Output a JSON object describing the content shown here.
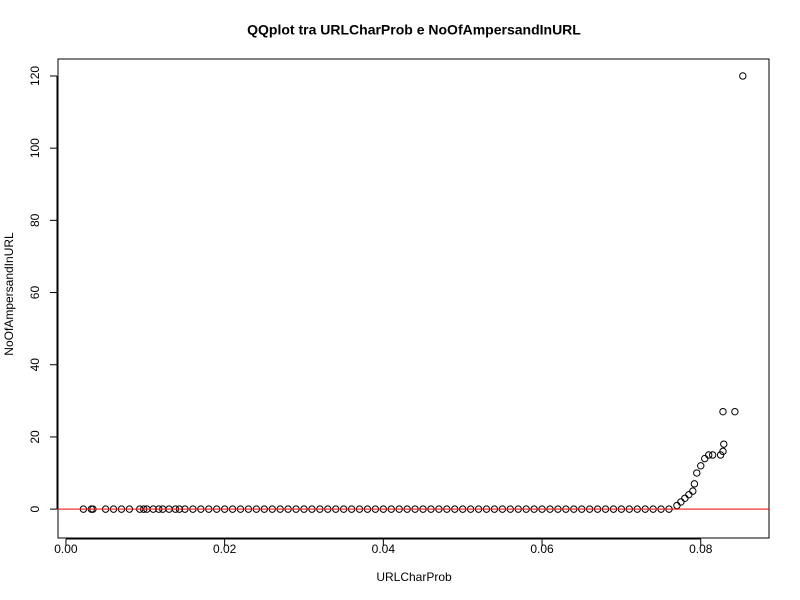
{
  "chart_data": {
    "type": "scatter",
    "title": "QQplot tra URLCharProb e NoOfAmpersandInURL",
    "x_label": "URLCharProb",
    "y_label": "NoOfAmpersandInURL",
    "xlim": [
      -0.001,
      0.0886
    ],
    "ylim": [
      -8,
      124.7
    ],
    "xticks": [
      {
        "value": 0,
        "label": "0.00"
      },
      0.02,
      0.04,
      0.06,
      0.08
    ],
    "yticks": [
      0,
      20,
      40,
      60,
      80,
      100,
      120
    ],
    "color": "#000000",
    "reference_line": {
      "y": 0,
      "color": "#ff0000"
    },
    "x": [
      0.0022,
      0.0032,
      0.0034,
      0.005,
      0.006,
      0.007,
      0.008,
      0.0093,
      0.0098,
      0.0102,
      0.011,
      0.0117,
      0.0122,
      0.013,
      0.0138,
      0.0143,
      0.015,
      0.016,
      0.017,
      0.018,
      0.019,
      0.02,
      0.021,
      0.022,
      0.023,
      0.024,
      0.025,
      0.026,
      0.027,
      0.028,
      0.029,
      0.03,
      0.031,
      0.032,
      0.033,
      0.034,
      0.035,
      0.036,
      0.037,
      0.038,
      0.039,
      0.04,
      0.041,
      0.042,
      0.043,
      0.044,
      0.045,
      0.046,
      0.047,
      0.048,
      0.049,
      0.05,
      0.051,
      0.052,
      0.053,
      0.054,
      0.055,
      0.056,
      0.057,
      0.058,
      0.059,
      0.06,
      0.061,
      0.062,
      0.063,
      0.064,
      0.065,
      0.066,
      0.067,
      0.068,
      0.069,
      0.07,
      0.071,
      0.072,
      0.073,
      0.074,
      0.075,
      0.076,
      0.077,
      0.0775,
      0.078,
      0.0785,
      0.079,
      0.0792,
      0.0795,
      0.08,
      0.0805,
      0.081,
      0.0815,
      0.0825,
      0.0828,
      0.0829,
      0.0828,
      0.0843,
      0.0853
    ],
    "values": [
      0,
      0,
      0,
      0,
      0,
      0,
      0,
      0,
      0,
      0,
      0,
      0,
      0,
      0,
      0,
      0,
      0,
      0,
      0,
      0,
      0,
      0,
      0,
      0,
      0,
      0,
      0,
      0,
      0,
      0,
      0,
      0,
      0,
      0,
      0,
      0,
      0,
      0,
      0,
      0,
      0,
      0,
      0,
      0,
      0,
      0,
      0,
      0,
      0,
      0,
      0,
      0,
      0,
      0,
      0,
      0,
      0,
      0,
      0,
      0,
      0,
      0,
      0,
      0,
      0,
      0,
      0,
      0,
      0,
      0,
      0,
      0,
      0,
      0,
      0,
      0,
      0,
      0,
      1,
      2,
      3,
      4,
      5,
      7,
      10,
      12,
      14,
      15,
      15,
      15,
      16,
      18,
      27,
      27,
      120
    ]
  }
}
